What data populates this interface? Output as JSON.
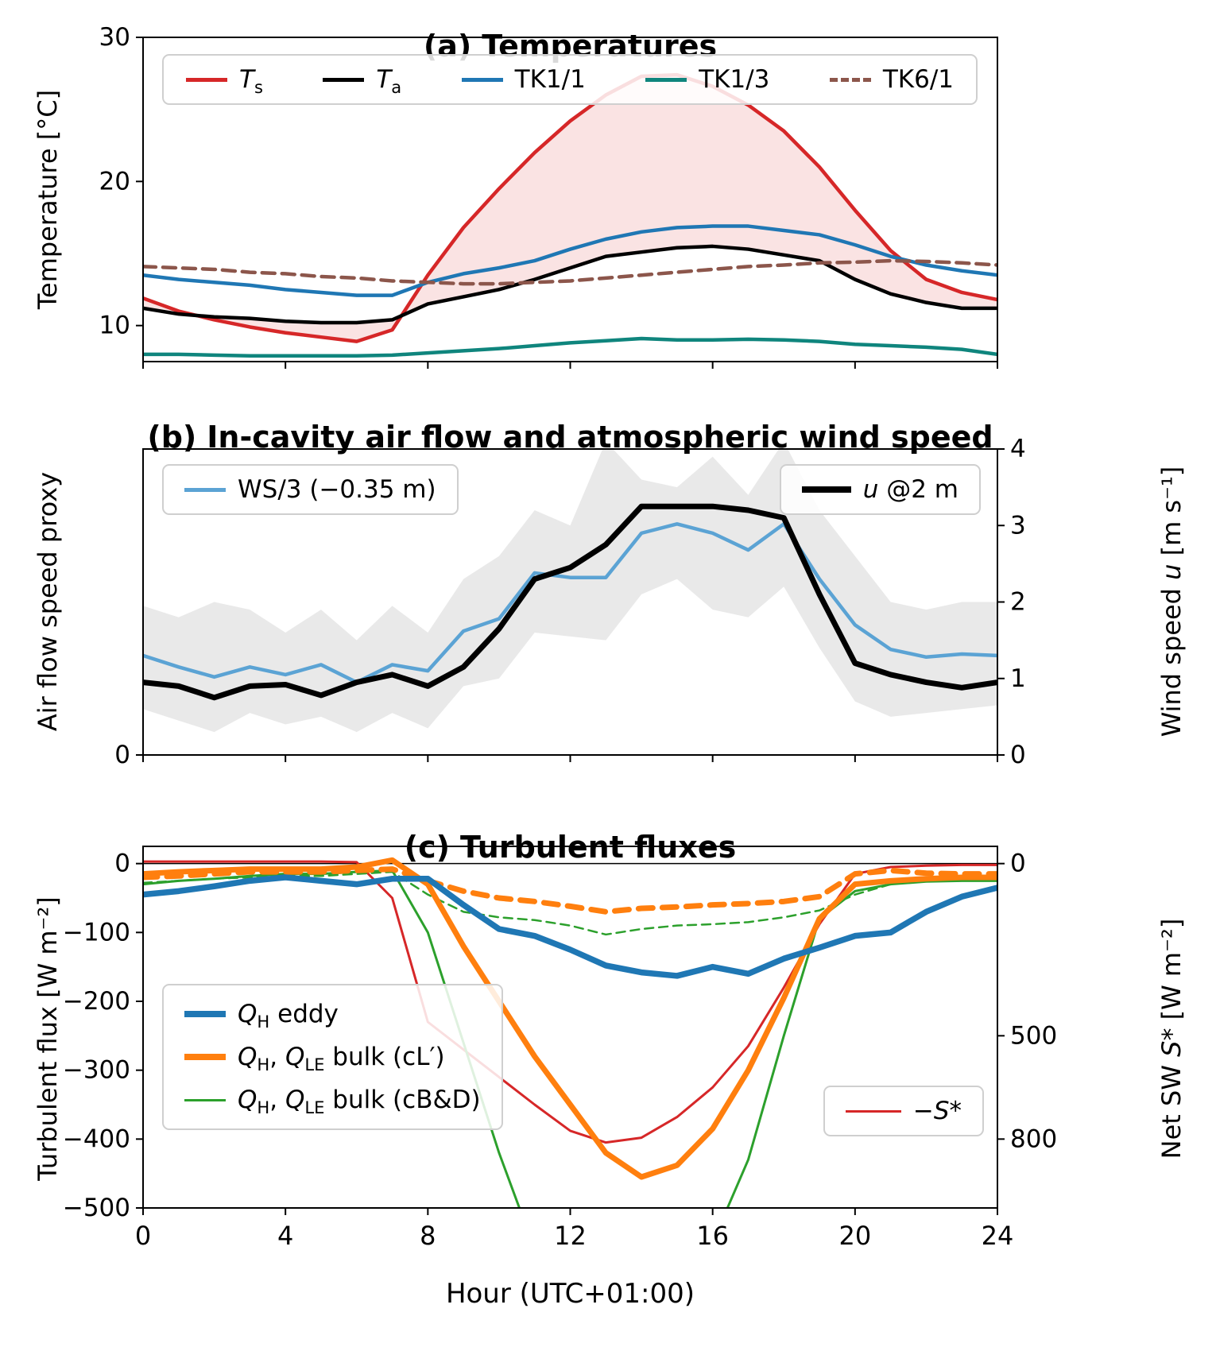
{
  "figure": {
    "xlabel": "Hour (UTC+01:00)"
  },
  "chart_data": [
    {
      "id": "a",
      "type": "line",
      "title_tag": "(a)",
      "title": "Temperatures",
      "ylabel": "Temperature [°C]",
      "xlim": [
        0,
        24
      ],
      "ylim": [
        7.5,
        30
      ],
      "grid": false,
      "legend_loc": "upper center",
      "yticks": [
        {
          "v": 10,
          "label": "10"
        },
        {
          "v": 20,
          "label": "20"
        },
        {
          "v": 30,
          "label": "30"
        }
      ],
      "xticks": [
        {
          "v": 0,
          "label": "0"
        },
        {
          "v": 4,
          "label": "4"
        },
        {
          "v": 8,
          "label": "8"
        },
        {
          "v": 12,
          "label": "12"
        },
        {
          "v": 16,
          "label": "16"
        },
        {
          "v": 20,
          "label": "20"
        },
        {
          "v": 24,
          "label": "24"
        }
      ],
      "show_xtick_labels": false,
      "x": [
        0,
        1,
        2,
        3,
        4,
        5,
        6,
        7,
        8,
        9,
        10,
        11,
        12,
        13,
        14,
        15,
        16,
        17,
        18,
        19,
        20,
        21,
        22,
        23,
        24
      ],
      "series": [
        {
          "key": "ts",
          "name": "T_s",
          "color": "#d62728",
          "width": 4.5,
          "dash": null,
          "values": [
            11.9,
            11.0,
            10.4,
            9.9,
            9.5,
            9.2,
            8.9,
            9.7,
            13.5,
            16.8,
            19.5,
            22.0,
            24.2,
            26.0,
            27.3,
            27.4,
            26.6,
            25.3,
            23.5,
            21.0,
            18.0,
            15.2,
            13.2,
            12.3,
            11.8
          ]
        },
        {
          "key": "ta",
          "name": "T_a",
          "color": "#000000",
          "width": 4.5,
          "dash": null,
          "values": [
            11.2,
            10.8,
            10.6,
            10.5,
            10.3,
            10.2,
            10.2,
            10.4,
            11.5,
            12.0,
            12.5,
            13.2,
            14.0,
            14.8,
            15.1,
            15.4,
            15.5,
            15.3,
            14.9,
            14.5,
            13.2,
            12.2,
            11.6,
            11.2,
            11.2
          ]
        },
        {
          "key": "tk11",
          "name": "TK1/1",
          "color": "#1f77b4",
          "width": 4.5,
          "dash": null,
          "values": [
            13.5,
            13.2,
            13.0,
            12.8,
            12.5,
            12.3,
            12.1,
            12.1,
            13.0,
            13.6,
            14.0,
            14.5,
            15.3,
            16.0,
            16.5,
            16.8,
            16.9,
            16.9,
            16.6,
            16.3,
            15.6,
            14.8,
            14.2,
            13.8,
            13.5
          ]
        },
        {
          "key": "tk13",
          "name": "TK1/3",
          "color": "#0f857d",
          "width": 4.5,
          "dash": null,
          "values": [
            8.0,
            8.0,
            7.95,
            7.9,
            7.9,
            7.9,
            7.9,
            7.95,
            8.1,
            8.25,
            8.4,
            8.6,
            8.8,
            8.95,
            9.1,
            9.0,
            9.0,
            9.05,
            9.0,
            8.9,
            8.7,
            8.6,
            8.5,
            8.35,
            8.0
          ]
        },
        {
          "key": "tk61",
          "name": "TK6/1",
          "color": "#8c564b",
          "width": 4.5,
          "dash": "16,9",
          "values": [
            14.1,
            14.0,
            13.9,
            13.7,
            13.6,
            13.4,
            13.3,
            13.1,
            13.0,
            12.9,
            12.9,
            13.0,
            13.1,
            13.3,
            13.5,
            13.7,
            13.9,
            14.1,
            14.2,
            14.35,
            14.4,
            14.5,
            14.45,
            14.35,
            14.2
          ]
        }
      ],
      "fills": [
        {
          "between": [
            "ts",
            "ta"
          ],
          "color": "#d62728",
          "opacity": 0.13
        }
      ],
      "legend": [
        {
          "label": "{i}T{/i}{sub}s{/sub}",
          "color": "#d62728",
          "width": 5,
          "dash": false
        },
        {
          "label": "{i}T{/i}{sub}a{/sub}",
          "color": "#000000",
          "width": 5,
          "dash": false
        },
        {
          "label": "TK1/1",
          "color": "#1f77b4",
          "width": 5,
          "dash": false
        },
        {
          "label": "TK1/3",
          "color": "#0f857d",
          "width": 5,
          "dash": false
        },
        {
          "label": "TK6/1",
          "color": "#8c564b",
          "width": 5,
          "dash": true
        }
      ]
    },
    {
      "id": "b",
      "type": "line",
      "title_tag": "(b)",
      "title": "In-cavity air flow and atmospheric wind speed",
      "ylabel": "Air flow speed proxy",
      "ylabel_right": "Wind speed {i}u{/i} [m s⁻¹]",
      "xlim": [
        0,
        24
      ],
      "ylim": [
        0,
        4
      ],
      "grid": false,
      "legend_loc": "upper left / upper right",
      "yticks": [
        {
          "v": 0,
          "label": "0"
        }
      ],
      "yticks_right": [
        {
          "v": 0,
          "label": "0"
        },
        {
          "v": 1,
          "label": "1"
        },
        {
          "v": 2,
          "label": "2"
        },
        {
          "v": 3,
          "label": "3"
        },
        {
          "v": 4,
          "label": "4"
        }
      ],
      "xticks": [
        {
          "v": 0,
          "label": "0"
        },
        {
          "v": 4,
          "label": "4"
        },
        {
          "v": 8,
          "label": "8"
        },
        {
          "v": 12,
          "label": "12"
        },
        {
          "v": 16,
          "label": "16"
        },
        {
          "v": 20,
          "label": "20"
        },
        {
          "v": 24,
          "label": "24"
        }
      ],
      "show_xtick_labels": false,
      "x": [
        0,
        1,
        2,
        3,
        4,
        5,
        6,
        7,
        8,
        9,
        10,
        11,
        12,
        13,
        14,
        15,
        16,
        17,
        18,
        19,
        20,
        21,
        22,
        23,
        24
      ],
      "series": [
        {
          "key": "ws3",
          "name": "WS/3 (-0.35 m)",
          "color": "#5ba3d4",
          "width": 4.5,
          "dash": null,
          "values": [
            1.3,
            1.15,
            1.02,
            1.15,
            1.05,
            1.18,
            0.95,
            1.18,
            1.1,
            1.62,
            1.78,
            2.38,
            2.32,
            2.32,
            2.9,
            3.02,
            2.9,
            2.68,
            3.02,
            2.3,
            1.7,
            1.38,
            1.28,
            1.32,
            1.3
          ]
        },
        {
          "key": "u2m",
          "name": "u @2 m",
          "color": "#000000",
          "width": 7,
          "dash": null,
          "values": [
            0.95,
            0.9,
            0.75,
            0.9,
            0.92,
            0.78,
            0.95,
            1.05,
            0.9,
            1.15,
            1.65,
            2.3,
            2.45,
            2.75,
            3.25,
            3.25,
            3.25,
            3.2,
            3.1,
            2.1,
            1.2,
            1.05,
            0.95,
            0.88,
            0.95
          ]
        }
      ],
      "fills": [
        {
          "band": true,
          "color": "#999999",
          "opacity": 0.22,
          "lower": [
            0.6,
            0.45,
            0.3,
            0.55,
            0.4,
            0.5,
            0.3,
            0.55,
            0.35,
            0.9,
            1.0,
            1.6,
            1.55,
            1.5,
            2.1,
            2.3,
            1.9,
            1.8,
            2.2,
            1.4,
            0.7,
            0.5,
            0.55,
            0.6,
            0.65
          ],
          "upper": [
            1.95,
            1.8,
            2.0,
            1.9,
            1.6,
            1.9,
            1.5,
            1.95,
            1.6,
            2.3,
            2.6,
            3.2,
            3.0,
            4.1,
            3.6,
            3.5,
            3.9,
            3.4,
            4.1,
            3.2,
            2.6,
            2.0,
            1.9,
            2.0,
            2.0
          ]
        }
      ],
      "legend": [
        {
          "label": "WS/3 (−0.35 m)",
          "color": "#5ba3d4",
          "width": 5,
          "dash": false
        }
      ],
      "legend2": [
        {
          "label": "{i}u{/i} @2 m",
          "color": "#000000",
          "width": 8,
          "dash": false
        }
      ]
    },
    {
      "id": "c",
      "type": "line",
      "title_tag": "(c)",
      "title": "Turbulent fluxes",
      "ylabel": "Turbulent flux [W m⁻²]",
      "ylabel_right": "Net SW {i}S{/i}* [W m⁻²]",
      "xlim": [
        0,
        24
      ],
      "ylim": [
        -500,
        25
      ],
      "grid": false,
      "zeroline": true,
      "legend_loc": "lower left / lower right",
      "yticks": [
        {
          "v": 0,
          "label": "0"
        },
        {
          "v": -100,
          "label": "−100"
        },
        {
          "v": -200,
          "label": "−200"
        },
        {
          "v": -300,
          "label": "−300"
        },
        {
          "v": -400,
          "label": "−400"
        },
        {
          "v": -500,
          "label": "−500"
        }
      ],
      "yticks_right": [
        {
          "v": 0,
          "label": "0"
        },
        {
          "v": -250,
          "label": "500"
        },
        {
          "v": -400,
          "label": "800"
        }
      ],
      "xticks": [
        {
          "v": 0,
          "label": "0"
        },
        {
          "v": 4,
          "label": "4"
        },
        {
          "v": 8,
          "label": "8"
        },
        {
          "v": 12,
          "label": "12"
        },
        {
          "v": 16,
          "label": "16"
        },
        {
          "v": 20,
          "label": "20"
        },
        {
          "v": 24,
          "label": "24"
        }
      ],
      "show_xtick_labels": true,
      "x": [
        0,
        1,
        2,
        3,
        4,
        5,
        6,
        7,
        8,
        9,
        10,
        11,
        12,
        13,
        14,
        15,
        16,
        17,
        18,
        19,
        20,
        21,
        22,
        23,
        24
      ],
      "series": [
        {
          "key": "neg_s_star",
          "name": "-S*",
          "color": "#d62728",
          "width": 3,
          "dash": null,
          "values": [
            3,
            3,
            3,
            3,
            3,
            3,
            2,
            -50,
            -230,
            -270,
            -310,
            -350,
            -388,
            -405,
            -398,
            -368,
            -325,
            -265,
            -180,
            -88,
            -15,
            -5,
            -3,
            -2,
            -2
          ]
        },
        {
          "key": "qh_bulk_cbd",
          "name": "Q_H bulk (cB&D)",
          "color": "#2ca02c",
          "width": 3,
          "dash": null,
          "values": [
            -30,
            -25,
            -22,
            -18,
            -15,
            -15,
            -12,
            -10,
            -100,
            -260,
            -420,
            -560,
            -650,
            -700,
            -690,
            -640,
            -550,
            -430,
            -250,
            -80,
            -40,
            -30,
            -26,
            -25,
            -25
          ]
        },
        {
          "key": "qle_bulk_cbd",
          "name": "Q_LE bulk (cB&D)",
          "color": "#2ca02c",
          "width": 2.5,
          "dash": "11,7",
          "values": [
            -28,
            -25,
            -22,
            -20,
            -18,
            -18,
            -15,
            -12,
            -45,
            -70,
            -78,
            -82,
            -90,
            -103,
            -95,
            -90,
            -88,
            -85,
            -78,
            -68,
            -45,
            -30,
            -25,
            -20,
            -20
          ]
        },
        {
          "key": "qh_bulk_cl",
          "name": "Q_H bulk (cL')",
          "color": "#ff7f0e",
          "width": 7,
          "dash": null,
          "values": [
            -15,
            -12,
            -10,
            -8,
            -8,
            -8,
            -5,
            5,
            -30,
            -120,
            -200,
            -280,
            -350,
            -420,
            -455,
            -438,
            -385,
            -300,
            -195,
            -80,
            -30,
            -25,
            -22,
            -20,
            -20
          ]
        },
        {
          "key": "qle_bulk_cl",
          "name": "Q_LE bulk (cL')",
          "color": "#ff7f0e",
          "width": 7,
          "dash": "18,12",
          "values": [
            -20,
            -18,
            -15,
            -12,
            -12,
            -12,
            -10,
            -8,
            -25,
            -40,
            -50,
            -55,
            -62,
            -70,
            -65,
            -63,
            -60,
            -58,
            -55,
            -48,
            -15,
            -10,
            -14,
            -15,
            -15
          ]
        },
        {
          "key": "qh_eddy",
          "name": "Q_H eddy",
          "color": "#1f77b4",
          "width": 7.5,
          "dash": null,
          "values": [
            -45,
            -40,
            -33,
            -25,
            -20,
            -25,
            -30,
            -22,
            -22,
            -60,
            -95,
            -105,
            -125,
            -148,
            -158,
            -163,
            -150,
            -160,
            -138,
            -122,
            -105,
            -100,
            -70,
            -48,
            -35
          ]
        }
      ],
      "fills": [],
      "legend": [
        {
          "label": "{i}Q{/i}{sub}H{/sub} eddy",
          "color": "#1f77b4",
          "width": 8,
          "dash": false
        },
        {
          "label": "{i}Q{/i}{sub}H{/sub}, {i}Q{/i}{sub}LE{/sub} bulk (cL′)",
          "color": "#ff7f0e",
          "width": 8,
          "dash": false
        },
        {
          "label": "{i}Q{/i}{sub}H{/sub}, {i}Q{/i}{sub}LE{/sub} bulk (cB&D)",
          "color": "#2ca02c",
          "width": 3,
          "dash": false
        }
      ],
      "legend2": [
        {
          "label": "−{i}S{/i}*",
          "color": "#d62728",
          "width": 3,
          "dash": false
        }
      ]
    }
  ]
}
